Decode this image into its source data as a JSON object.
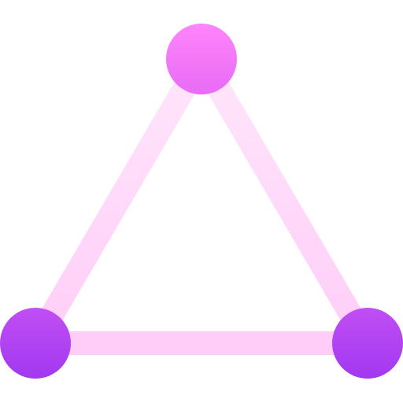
{
  "icon": {
    "name": "triangle-network-icon",
    "colors": {
      "edge_light": "#ffe6fb",
      "edge_mid": "#ffcdf8",
      "node_top": "#ff84fa",
      "node_bottom": "#a238f0"
    }
  }
}
